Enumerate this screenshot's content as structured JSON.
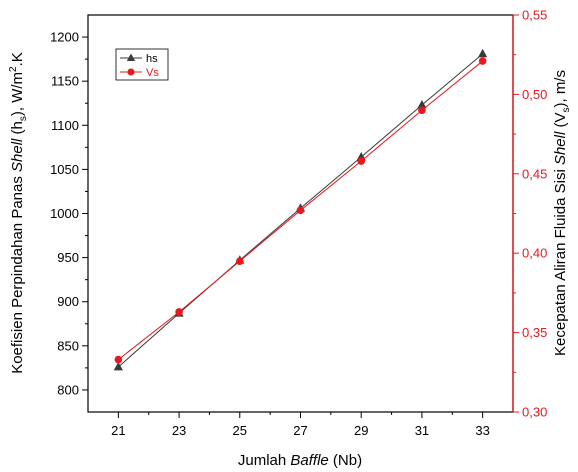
{
  "chart_data": {
    "type": "line",
    "x": [
      21,
      23,
      25,
      27,
      29,
      31,
      33
    ],
    "x_ticks": [
      "21",
      "23",
      "25",
      "27",
      "29",
      "31",
      "33"
    ],
    "xlim": [
      20,
      34
    ],
    "xlabel_prefix": "Jumlah ",
    "xlabel_italic": "Baffle",
    "xlabel_suffix": " (Nb)",
    "y_left": {
      "lim": [
        775,
        1225
      ],
      "ticks": [
        "800",
        "850",
        "900",
        "950",
        "1000",
        "1050",
        "1100",
        "1150",
        "1200"
      ],
      "label_prefix": "Koefisien Perpindahan Panas ",
      "label_italic": "Shell",
      "label_mid": " (h",
      "label_sub": "s",
      "label_suffix": "), W/m",
      "label_sup": "2",
      "label_end": ".K",
      "color": "#000000"
    },
    "y_right": {
      "lim": [
        0.3,
        0.55
      ],
      "ticks": [
        "0,30",
        "0,35",
        "0,40",
        "0,45",
        "0,50",
        "0,55"
      ],
      "label_prefix": "Kecepatan Aliran Fluida Sisi ",
      "label_italic": "Shell",
      "label_mid": " (V",
      "label_sub": "s",
      "label_suffix": "), m/s",
      "color": "#e8191e"
    },
    "series": [
      {
        "name": "hs",
        "axis": "left",
        "marker": "triangle",
        "color": "#3a3a3a",
        "values": [
          826,
          887,
          947,
          1006,
          1064,
          1123,
          1181
        ]
      },
      {
        "name": "Vs",
        "axis": "right",
        "marker": "circle",
        "color": "#e8191e",
        "values": [
          0.333,
          0.363,
          0.395,
          0.427,
          0.458,
          0.49,
          0.521
        ]
      }
    ],
    "legend_position": "top-left",
    "grid": false
  }
}
